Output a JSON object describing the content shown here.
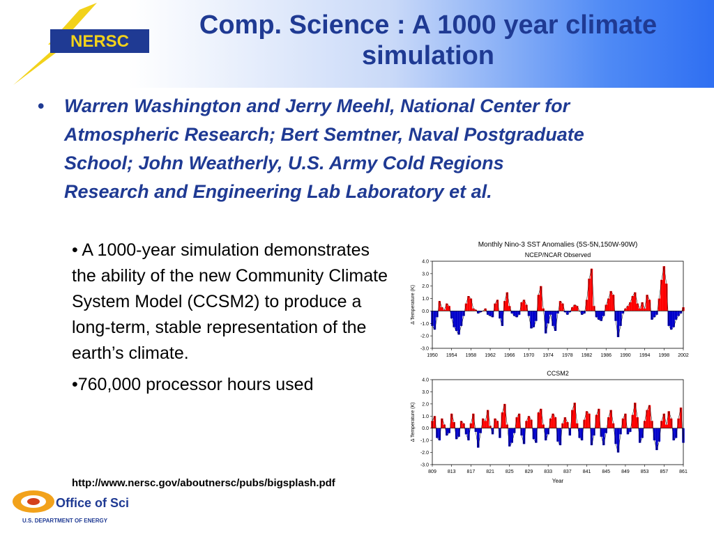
{
  "slide": {
    "title": "Comp. Science : A 1000 year climate simulation",
    "bullet_main": "Warren Washington and Jerry Meehl, National Center for Atmospheric Research; Bert Semtner, Naval Postgraduate School; John Weatherly, U.S. Army Cold Regions Research and Engineering Lab Laboratory et al.",
    "bullet_dot": "•",
    "sub_bullets": [
      "• A 1000-year simulation demonstrates the ability of the new Community Climate System Model (CCSM2) to produce a long-term, stable representation of the earth’s climate.",
      "•760,000 processor hours used"
    ],
    "url": "http://www.nersc.gov/aboutnersc/pubs/bigsplash.pdf"
  },
  "logos": {
    "nersc": "NERSC",
    "office_of_science": "Office of Science",
    "doe": "U.S. DEPARTMENT OF ENERGY"
  },
  "colors": {
    "title": "#1f3a93",
    "positive": "#ff0000",
    "negative": "#0000cc"
  },
  "chart_data": [
    {
      "type": "area",
      "title": "Monthly Nino-3 SST Anomalies (5S-5N,150W-90W)",
      "subtitle": "NCEP/NCAR Observed",
      "xlabel": "",
      "ylabel": "Δ Temperature (K)",
      "xlim": [
        1950,
        2002
      ],
      "ylim": [
        -3.0,
        4.0
      ],
      "x_ticks": [
        "1950",
        "1954",
        "1958",
        "1962",
        "1966",
        "1970",
        "1974",
        "1978",
        "1982",
        "1986",
        "1990",
        "1994",
        "1998",
        "2002"
      ],
      "y_ticks": [
        "-3.0",
        "-2.0",
        "-1.0",
        "0.0",
        "1.0",
        "2.0",
        "3.0",
        "4.0"
      ],
      "grid": false,
      "x": [
        1950,
        1950.5,
        1951,
        1951.5,
        1952,
        1952.5,
        1953,
        1953.5,
        1954,
        1954.5,
        1955,
        1955.5,
        1956,
        1956.5,
        1957,
        1957.5,
        1958,
        1958.5,
        1959,
        1959.5,
        1960,
        1960.5,
        1961,
        1961.5,
        1962,
        1962.5,
        1963,
        1963.5,
        1964,
        1964.5,
        1965,
        1965.5,
        1966,
        1966.5,
        1967,
        1967.5,
        1968,
        1968.5,
        1969,
        1969.5,
        1970,
        1970.5,
        1971,
        1971.5,
        1972,
        1972.5,
        1973,
        1973.5,
        1974,
        1974.5,
        1975,
        1975.5,
        1976,
        1976.5,
        1977,
        1977.5,
        1978,
        1978.5,
        1979,
        1979.5,
        1980,
        1980.5,
        1981,
        1981.5,
        1982,
        1982.5,
        1983,
        1983.5,
        1984,
        1984.5,
        1985,
        1985.5,
        1986,
        1986.5,
        1987,
        1987.5,
        1988,
        1988.5,
        1989,
        1989.5,
        1990,
        1990.5,
        1991,
        1991.5,
        1992,
        1992.5,
        1993,
        1993.5,
        1994,
        1994.5,
        1995,
        1995.5,
        1996,
        1996.5,
        1997,
        1997.5,
        1998,
        1998.5,
        1999,
        1999.5,
        2000,
        2000.5,
        2001,
        2001.5,
        2002
      ],
      "y": [
        -1.2,
        -1.5,
        -0.5,
        0.8,
        0.3,
        0.1,
        0.6,
        0.4,
        -0.6,
        -1.3,
        -1.6,
        -1.9,
        -1.2,
        -0.4,
        0.6,
        1.2,
        1.0,
        0.2,
        0.1,
        -0.2,
        -0.1,
        0.0,
        0.2,
        -0.3,
        -0.4,
        -0.5,
        0.6,
        0.9,
        -0.6,
        -1.2,
        0.8,
        1.5,
        0.4,
        -0.2,
        -0.4,
        -0.5,
        -0.3,
        0.7,
        0.9,
        0.5,
        -0.4,
        -1.4,
        -1.3,
        -0.8,
        1.3,
        2.0,
        0.2,
        -1.8,
        -1.0,
        -0.3,
        -1.2,
        -1.6,
        -0.2,
        0.8,
        0.6,
        -0.1,
        -0.3,
        -0.1,
        0.3,
        0.5,
        0.4,
        0.0,
        -0.3,
        -0.2,
        0.9,
        2.6,
        3.4,
        0.4,
        -0.5,
        -0.7,
        -0.8,
        -0.4,
        0.5,
        1.0,
        1.6,
        1.3,
        -0.8,
        -2.1,
        -1.2,
        -0.2,
        0.2,
        0.4,
        0.7,
        1.2,
        1.5,
        0.6,
        0.2,
        0.7,
        0.2,
        1.3,
        0.9,
        -0.7,
        -0.5,
        -0.3,
        1.0,
        2.5,
        3.6,
        2.2,
        -1.2,
        -1.5,
        -1.3,
        -0.7,
        -0.4,
        -0.2,
        0.3
      ]
    },
    {
      "type": "area",
      "title": "CCSM2",
      "xlabel": "Year",
      "ylabel": "Δ Temperature (K)",
      "xlim": [
        809,
        861
      ],
      "ylim": [
        -3.0,
        4.0
      ],
      "x_ticks": [
        "809",
        "813",
        "817",
        "821",
        "825",
        "829",
        "833",
        "837",
        "841",
        "845",
        "849",
        "853",
        "857",
        "861"
      ],
      "y_ticks": [
        "-3.0",
        "-2.0",
        "-1.0",
        "0.0",
        "1.0",
        "2.0",
        "3.0",
        "4.0"
      ],
      "grid": false,
      "x": [
        809,
        809.5,
        810,
        810.5,
        811,
        811.5,
        812,
        812.5,
        813,
        813.5,
        814,
        814.5,
        815,
        815.5,
        816,
        816.5,
        817,
        817.5,
        818,
        818.5,
        819,
        819.5,
        820,
        820.5,
        821,
        821.5,
        822,
        822.5,
        823,
        823.5,
        824,
        824.5,
        825,
        825.5,
        826,
        826.5,
        827,
        827.5,
        828,
        828.5,
        829,
        829.5,
        830,
        830.5,
        831,
        831.5,
        832,
        832.5,
        833,
        833.5,
        834,
        834.5,
        835,
        835.5,
        836,
        836.5,
        837,
        837.5,
        838,
        838.5,
        839,
        839.5,
        840,
        840.5,
        841,
        841.5,
        842,
        842.5,
        843,
        843.5,
        844,
        844.5,
        845,
        845.5,
        846,
        846.5,
        847,
        847.5,
        848,
        848.5,
        849,
        849.5,
        850,
        850.5,
        851,
        851.5,
        852,
        852.5,
        853,
        853.5,
        854,
        854.5,
        855,
        855.5,
        856,
        856.5,
        857,
        857.5,
        858,
        858.5,
        859,
        859.5,
        860,
        860.5,
        861
      ],
      "y": [
        0.6,
        1.0,
        -0.8,
        -1.0,
        0.8,
        0.3,
        -0.6,
        -0.4,
        1.2,
        0.5,
        -0.9,
        -0.7,
        0.6,
        0.4,
        -0.5,
        -1.0,
        0.4,
        1.2,
        -0.3,
        -1.6,
        -0.4,
        0.8,
        0.6,
        1.5,
        0.2,
        -0.5,
        0.8,
        0.6,
        -0.8,
        1.3,
        2.0,
        0.3,
        -1.5,
        -1.2,
        -0.4,
        0.9,
        1.2,
        -0.6,
        -1.3,
        0.6,
        1.0,
        0.7,
        -0.9,
        -1.2,
        1.3,
        1.6,
        0.3,
        -1.0,
        -0.5,
        0.8,
        1.2,
        0.9,
        -1.1,
        -1.4,
        0.4,
        0.9,
        0.5,
        -0.6,
        1.5,
        2.1,
        0.4,
        -0.8,
        -1.0,
        0.7,
        1.4,
        1.2,
        -1.4,
        -0.6,
        1.1,
        1.6,
        -0.7,
        -1.4,
        -0.4,
        0.9,
        1.5,
        0.4,
        -1.3,
        -2.0,
        -0.5,
        0.8,
        1.2,
        -0.5,
        -0.3,
        1.1,
        2.1,
        0.9,
        -1.2,
        -0.8,
        0.6,
        1.5,
        1.9,
        0.6,
        -1.0,
        -1.8,
        -1.1,
        0.6,
        1.2,
        0.3,
        1.4,
        0.8,
        -1.0,
        -0.8,
        0.8,
        1.7,
        -1.2
      ]
    }
  ]
}
